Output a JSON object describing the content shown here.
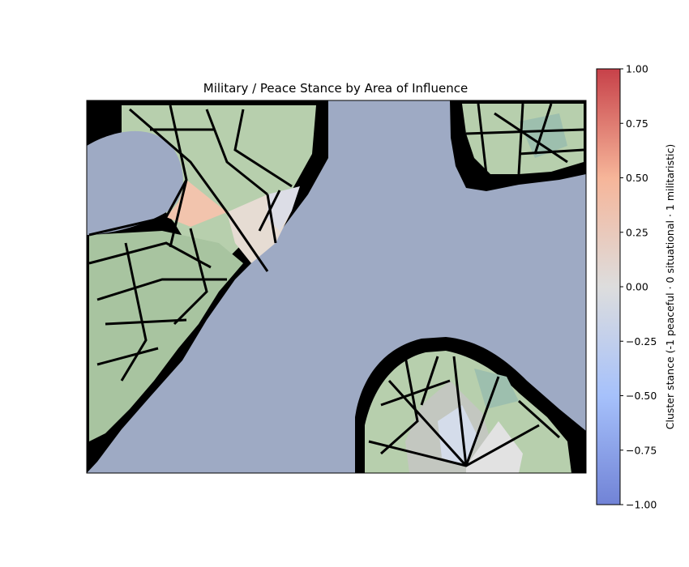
{
  "chart_data": {
    "type": "heatmap",
    "title": "Military / Peace Stance by Area of Influence",
    "xlabel": "",
    "ylabel": "",
    "x_ticks": [],
    "y_ticks": [],
    "colorbar": {
      "label": "Cluster stance  (-1 peaceful · 0 situational · 1 militaristic)",
      "colormap": "coolwarm",
      "range": [
        -1,
        1
      ],
      "ticks": [
        "1.00",
        "0.75",
        "0.50",
        "0.25",
        "0.00",
        "−0.25",
        "−0.50",
        "−0.75",
        "−1.00"
      ],
      "tick_values": [
        1,
        0.75,
        0.5,
        0.25,
        0,
        -0.25,
        -0.5,
        -0.75,
        -1
      ]
    },
    "regions": [
      {
        "name": "north-west landmass",
        "stance_approx": 0.05
      },
      {
        "name": "north-east landmass",
        "stance_approx": 0.0
      },
      {
        "name": "south landmass",
        "stance_approx": -0.05
      },
      {
        "name": "sea",
        "stance_approx": null
      }
    ],
    "colors": {
      "sea": "#9eaac4",
      "border": "#000000",
      "cluster_green": "#b7cfad",
      "cluster_green_dark": "#a8c4a0",
      "cluster_teal": "#9dbfae",
      "cluster_peach": "#f2c4ad",
      "cluster_blush": "#e6dcd3",
      "cluster_grey": "#c3c7c0",
      "cluster_pale_blue": "#d4dcea",
      "cluster_light": "#e2e2e2",
      "cmap_top": "#c74149",
      "cmap_mid": "#dddddd",
      "cmap_bottom": "#7183d6"
    }
  }
}
